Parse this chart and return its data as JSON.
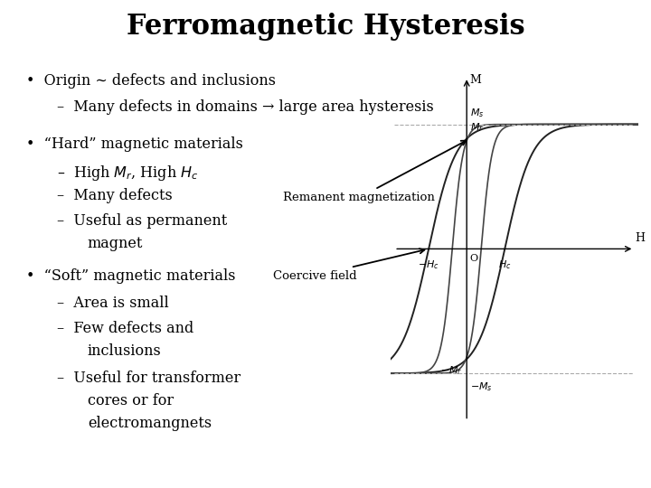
{
  "title": "Ferromagnetic Hysteresis",
  "background_color": "#ffffff",
  "text_color": "#000000",
  "bullet1": "Origin ~ defects and inclusions",
  "sub1a": "Many defects in domains → large area hysteresis",
  "bullet2": "“Hard” magnetic materials",
  "sub2b": "Many defects",
  "bullet3": "“Soft” magnetic materials",
  "sub3a": "Area is small",
  "annotation_remanent": "Remanent magnetization",
  "annotation_coercive": "Coercive field"
}
